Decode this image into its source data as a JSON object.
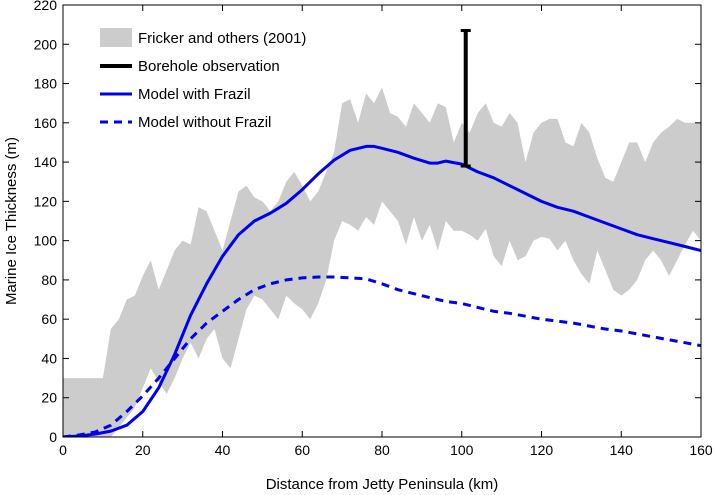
{
  "chart_data": {
    "type": "line",
    "xlabel": "Distance from Jetty Peninsula (km)",
    "ylabel": "Marine Ice Thickness (m)",
    "xlim": [
      0,
      160
    ],
    "ylim": [
      0,
      220
    ],
    "xticks": [
      0,
      20,
      40,
      60,
      80,
      100,
      120,
      140,
      160
    ],
    "yticks": [
      0,
      20,
      40,
      60,
      80,
      100,
      120,
      140,
      160,
      180,
      200,
      220
    ],
    "grid": false,
    "legend_position": "top-left",
    "colors": {
      "band": "#cccccc",
      "borehole": "#000000",
      "model": "#0000ee"
    },
    "series": [
      {
        "name": "Fricker and others (2001)",
        "style": "band",
        "x": [
          0,
          10,
          12,
          14,
          16,
          18,
          20,
          22,
          24,
          26,
          28,
          30,
          32,
          34,
          36,
          38,
          40,
          42,
          44,
          46,
          48,
          50,
          52,
          54,
          56,
          58,
          60,
          62,
          64,
          66,
          68,
          70,
          72,
          74,
          76,
          78,
          80,
          82,
          84,
          86,
          88,
          90,
          92,
          94,
          96,
          98,
          100,
          102,
          104,
          106,
          108,
          110,
          112,
          114,
          116,
          118,
          120,
          122,
          124,
          126,
          128,
          130,
          132,
          134,
          136,
          138,
          140,
          142,
          144,
          146,
          148,
          150,
          152,
          154,
          156,
          158,
          160
        ],
        "upper": [
          30,
          30,
          55,
          60,
          70,
          72,
          82,
          90,
          75,
          85,
          95,
          100,
          98,
          117,
          115,
          105,
          95,
          110,
          125,
          128,
          122,
          120,
          115,
          120,
          130,
          135,
          128,
          120,
          125,
          135,
          145,
          170,
          172,
          160,
          175,
          170,
          178,
          165,
          163,
          158,
          170,
          165,
          160,
          170,
          168,
          150,
          160,
          155,
          165,
          170,
          160,
          158,
          165,
          160,
          140,
          155,
          160,
          162,
          162,
          150,
          148,
          160,
          155,
          142,
          132,
          130,
          140,
          150,
          150,
          140,
          150,
          155,
          158,
          162,
          160,
          160,
          160
        ],
        "lower": [
          0,
          0,
          0,
          5,
          10,
          15,
          25,
          35,
          28,
          22,
          30,
          40,
          48,
          40,
          50,
          55,
          40,
          35,
          50,
          65,
          72,
          70,
          65,
          60,
          72,
          68,
          65,
          60,
          68,
          80,
          100,
          110,
          108,
          105,
          112,
          108,
          120,
          115,
          110,
          98,
          112,
          100,
          108,
          95,
          110,
          105,
          105,
          103,
          100,
          106,
          92,
          87,
          100,
          90,
          92,
          100,
          102,
          101,
          95,
          100,
          90,
          83,
          78,
          95,
          85,
          75,
          72,
          75,
          80,
          90,
          95,
          90,
          82,
          90,
          98,
          105,
          100
        ]
      },
      {
        "name": "Borehole observation",
        "style": "errorbar",
        "x": 101,
        "ymin": 138,
        "ymax": 207
      },
      {
        "name": "Model with Frazil",
        "style": "solid",
        "x": [
          0,
          4,
          8,
          12,
          16,
          20,
          24,
          28,
          32,
          36,
          40,
          44,
          48,
          52,
          56,
          60,
          64,
          68,
          72,
          76,
          78,
          80,
          84,
          88,
          92,
          94,
          96,
          100,
          104,
          108,
          112,
          116,
          120,
          124,
          128,
          132,
          136,
          140,
          144,
          148,
          152,
          156,
          160
        ],
        "y": [
          0,
          0.5,
          1.5,
          3,
          6,
          13,
          25,
          42,
          62,
          78,
          92,
          103,
          110,
          114,
          119,
          126,
          134,
          141,
          146,
          148,
          148,
          147,
          145,
          142,
          139.5,
          139.5,
          140.5,
          139,
          135,
          132,
          128,
          124,
          120,
          117,
          115,
          112,
          109,
          106,
          103,
          101,
          99,
          97,
          95
        ]
      },
      {
        "name": "Model without Frazil",
        "style": "dashed",
        "x": [
          0,
          4,
          8,
          12,
          16,
          20,
          24,
          28,
          32,
          36,
          40,
          44,
          48,
          52,
          56,
          60,
          64,
          68,
          72,
          76,
          80,
          84,
          88,
          92,
          96,
          100,
          104,
          108,
          112,
          116,
          120,
          124,
          128,
          132,
          136,
          140,
          144,
          148,
          152,
          156,
          160
        ],
        "y": [
          0,
          1,
          2.5,
          6,
          13,
          21,
          30,
          40,
          50,
          58,
          64,
          70,
          75,
          78,
          80,
          81,
          81.5,
          81.5,
          81,
          80.5,
          78,
          75,
          73,
          71,
          69,
          68,
          66,
          64,
          63,
          61.5,
          60,
          59,
          58,
          56.5,
          55,
          54,
          52.5,
          51,
          49.5,
          48,
          46.5
        ]
      }
    ]
  }
}
